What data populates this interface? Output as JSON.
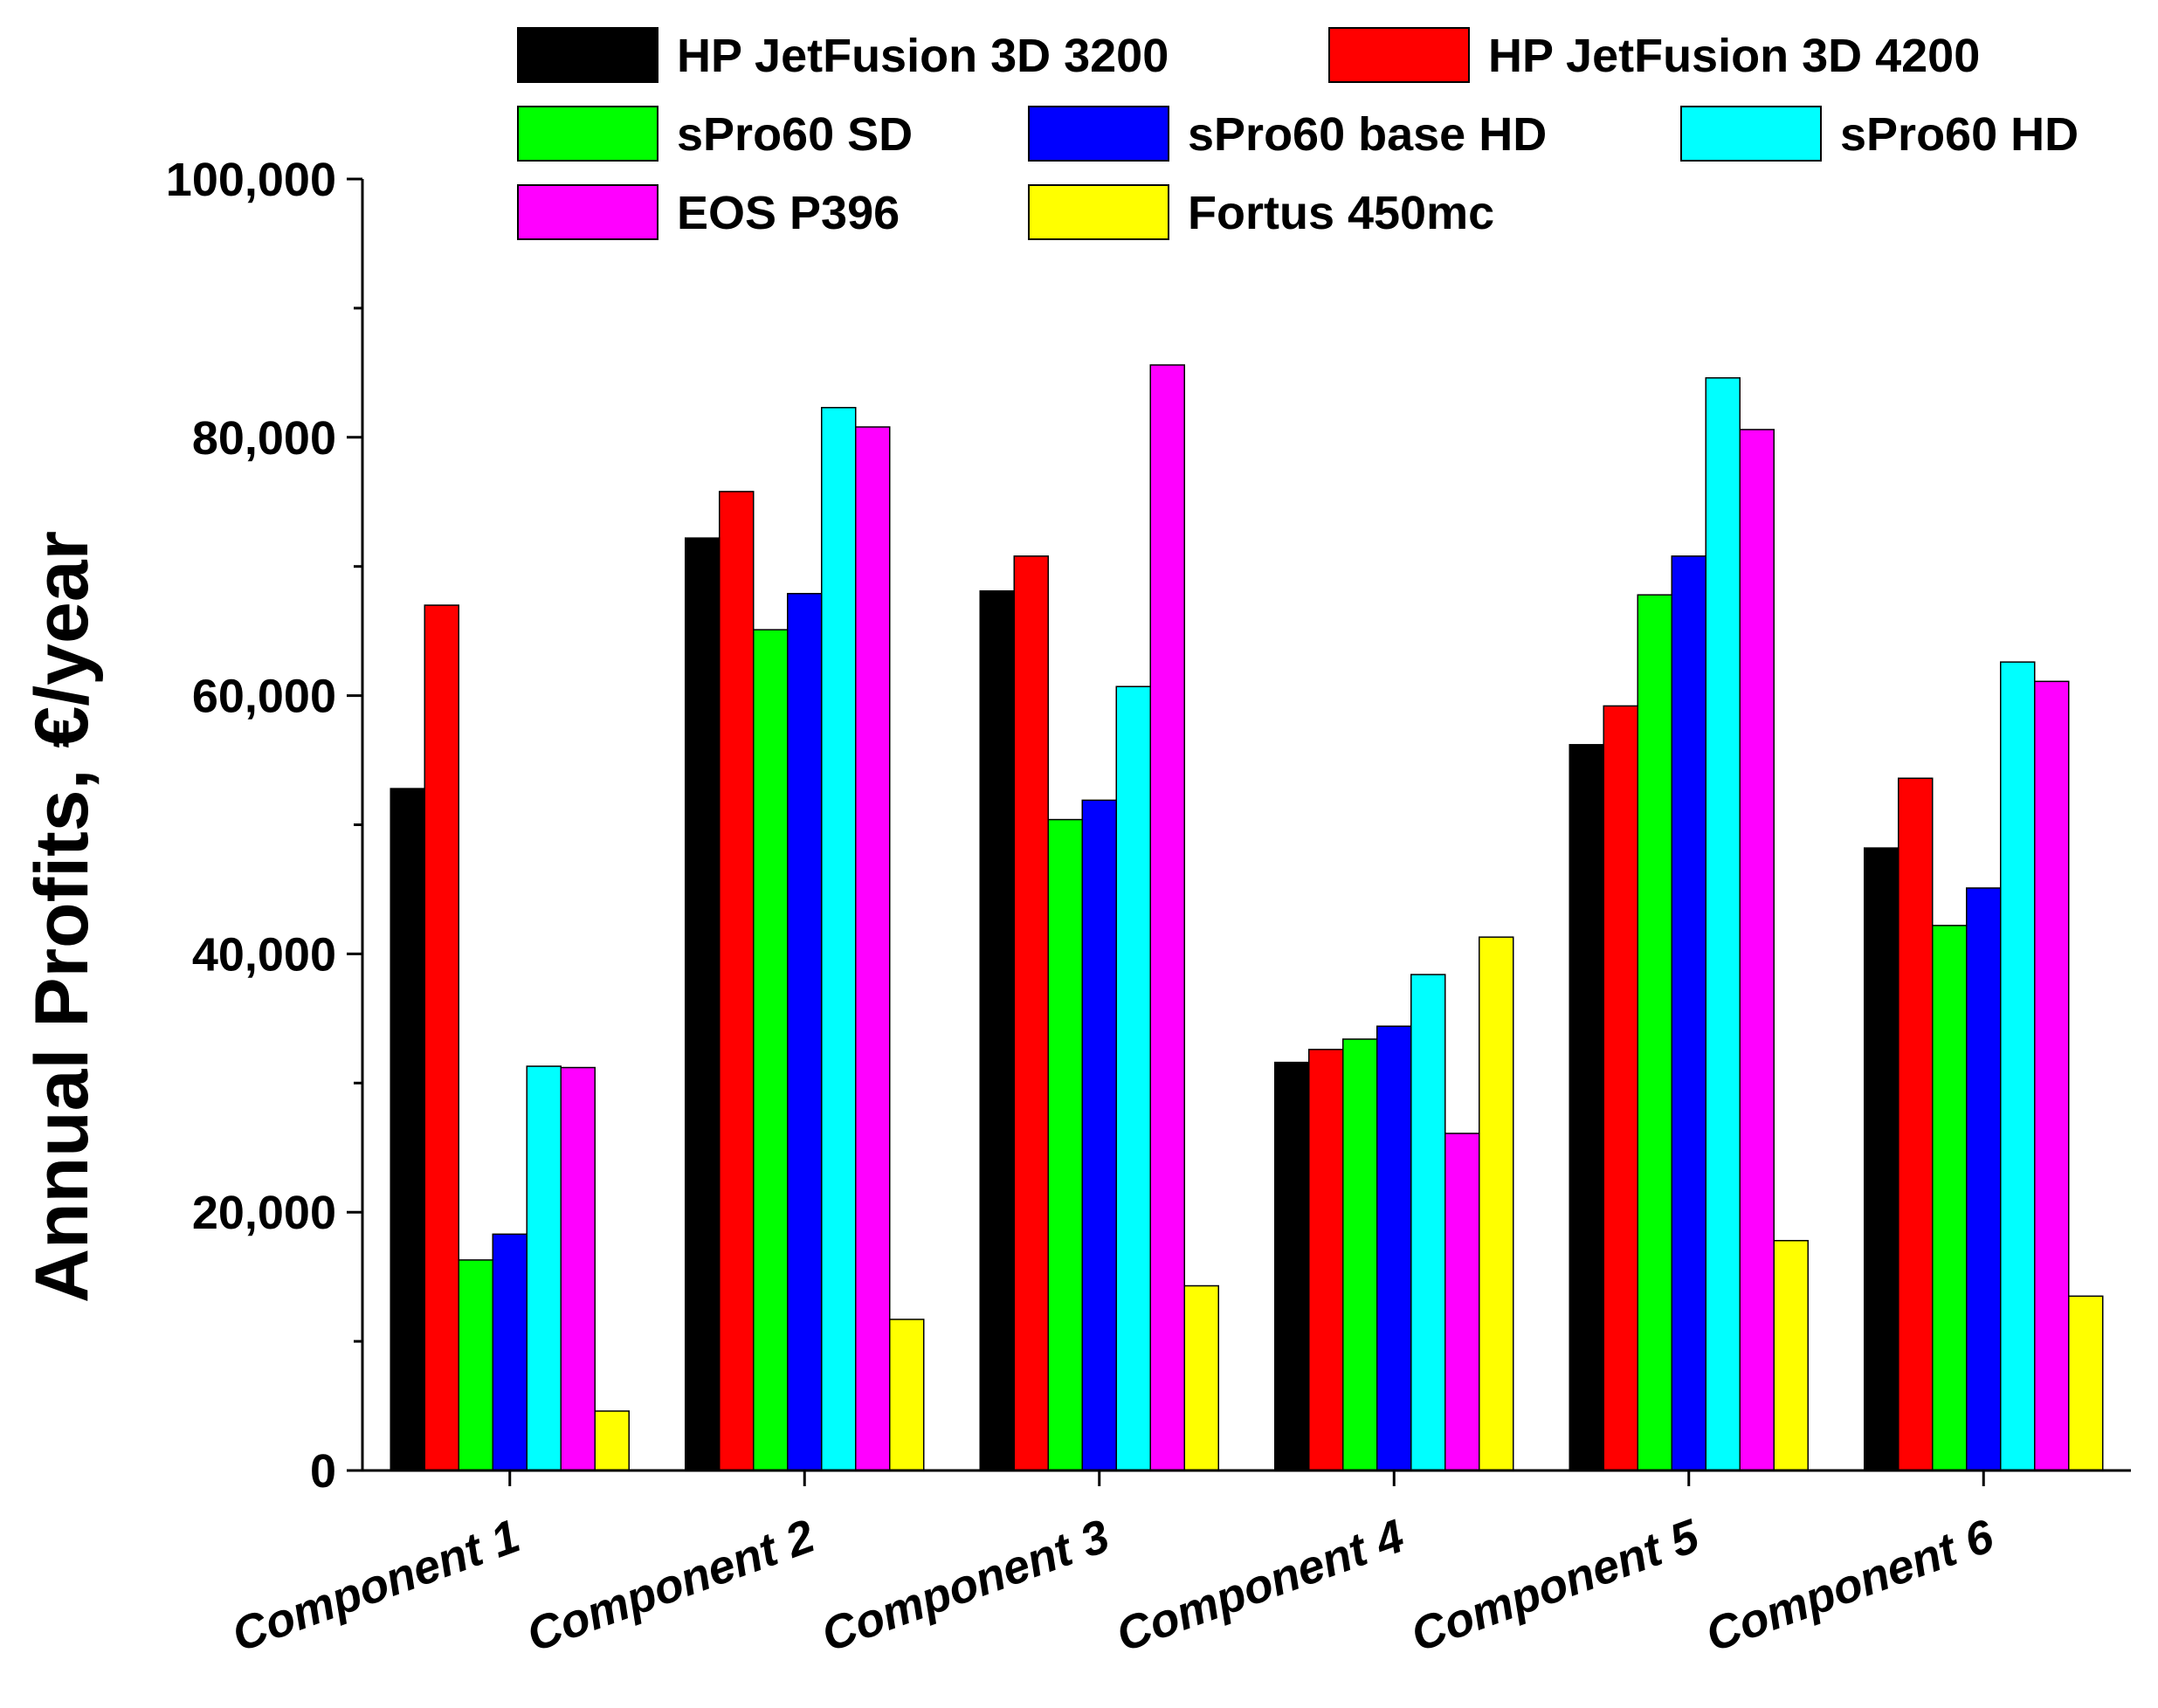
{
  "chart_data": {
    "type": "bar",
    "title": "",
    "xlabel": "",
    "ylabel": "Annual Profits, €/year",
    "ylim": [
      0,
      100000
    ],
    "yticks": [
      0,
      20000,
      40000,
      60000,
      80000,
      100000
    ],
    "ytick_labels": [
      "0",
      "20,000",
      "40,000",
      "60,000",
      "80,000",
      "100,000"
    ],
    "grid": false,
    "legend_position": "top",
    "categories": [
      "Component 1",
      "Component 2",
      "Component 3",
      "Component 4",
      "Component 5",
      "Component 6"
    ],
    "series": [
      {
        "name": "HP JetFusion 3D 3200",
        "color": "#000000",
        "values": [
          52800,
          72200,
          68100,
          31600,
          56200,
          48200
        ]
      },
      {
        "name": "HP JetFusion 3D 4200",
        "color": "#ff0000",
        "values": [
          67000,
          75800,
          70800,
          32600,
          59200,
          53600
        ]
      },
      {
        "name": "sPro60 SD",
        "color": "#00ff00",
        "values": [
          16300,
          65100,
          50400,
          33400,
          67800,
          42200
        ]
      },
      {
        "name": "sPro60 base HD",
        "color": "#0000ff",
        "values": [
          18300,
          67900,
          51900,
          34400,
          70800,
          45100
        ]
      },
      {
        "name": "sPro60 HD",
        "color": "#00ffff",
        "values": [
          31300,
          82300,
          60700,
          38400,
          84600,
          62600
        ]
      },
      {
        "name": "EOS P396",
        "color": "#ff00ff",
        "values": [
          31200,
          80800,
          85600,
          26100,
          80600,
          61100
        ]
      },
      {
        "name": "Fortus 450mc",
        "color": "#ffff00",
        "values": [
          4600,
          11700,
          14300,
          41300,
          17800,
          13500
        ]
      }
    ]
  }
}
